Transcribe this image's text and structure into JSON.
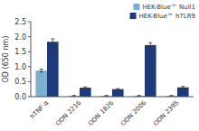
{
  "chart_data": {
    "type": "bar",
    "ylabel": "OD (650 nm)",
    "categories": [
      "hTNF-α",
      "ODN 2216",
      "ODN 1826",
      "ODN 2006",
      "ODN 2395"
    ],
    "series": [
      {
        "name": "HEK-Blue™ Null1",
        "color": "#7BAFD4",
        "values": [
          0.87,
          0.03,
          0.03,
          0.03,
          0.03
        ],
        "errors": [
          0.05,
          0.01,
          0.01,
          0.01,
          0.01
        ]
      },
      {
        "name": "HEK-Blue™ hTLR9",
        "color": "#1F3A7A",
        "values": [
          1.83,
          0.3,
          0.25,
          1.72,
          0.31
        ],
        "errors": [
          0.1,
          0.03,
          0.02,
          0.08,
          0.03
        ]
      }
    ],
    "ylim": [
      0,
      2.5
    ],
    "yticks": [
      {
        "value": 0,
        "label": "0.0"
      },
      0.5,
      {
        "value": 1,
        "label": "1.0"
      },
      1.5,
      {
        "value": 2,
        "label": "2.0"
      },
      2.5
    ],
    "legend": "upper right",
    "grid": false
  }
}
